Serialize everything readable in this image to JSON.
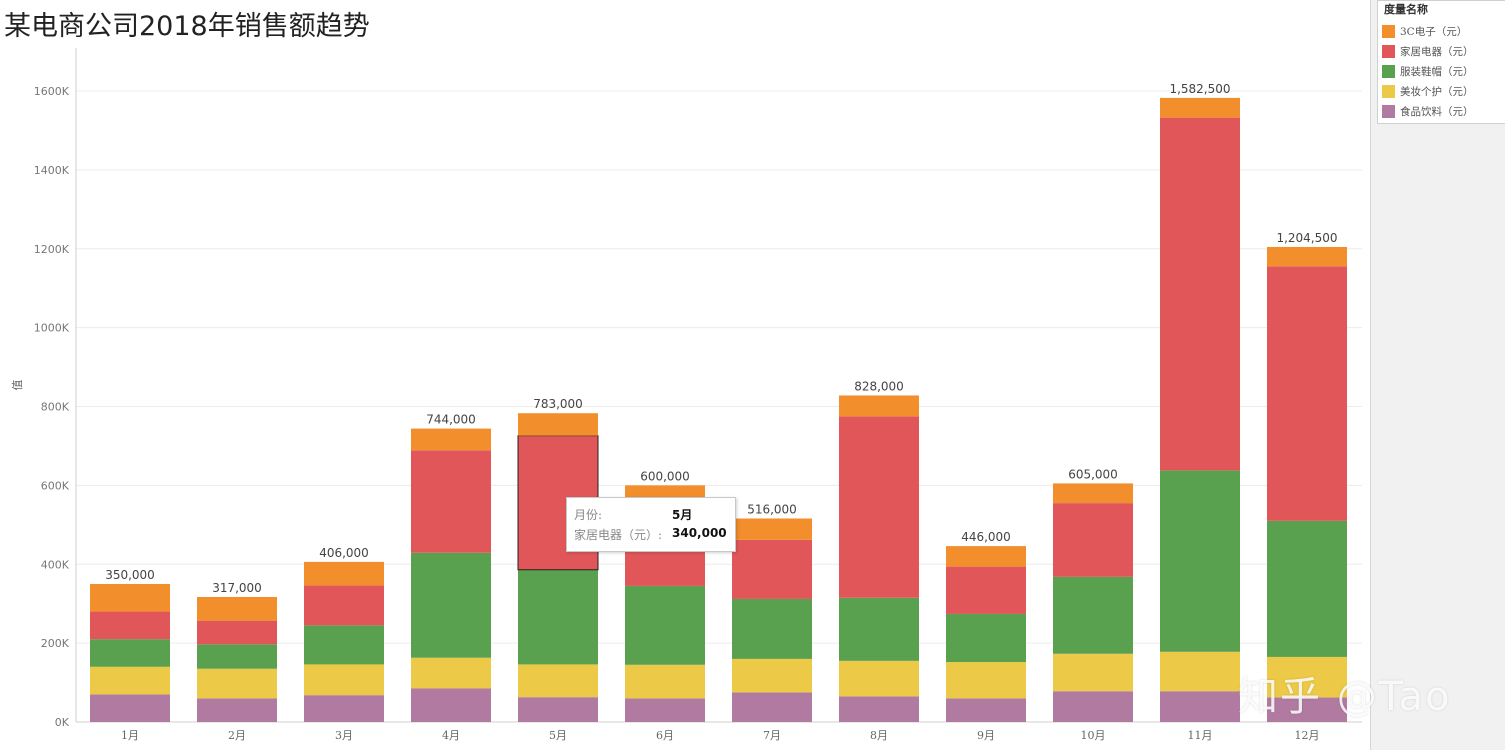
{
  "chart_data": {
    "type": "bar",
    "stacked": true,
    "title": "某电商公司2018年销售额趋势",
    "ylabel": "值",
    "xlabel": "",
    "ylim": [
      0,
      1700000
    ],
    "y_ticks": [
      0,
      200000,
      400000,
      600000,
      800000,
      1000000,
      1200000,
      1400000,
      1600000
    ],
    "y_tick_labels": [
      "0K",
      "200K",
      "400K",
      "600K",
      "800K",
      "1000K",
      "1200K",
      "1400K",
      "1600K"
    ],
    "grid": true,
    "legend_position": "top-right",
    "categories": [
      "1月",
      "2月",
      "3月",
      "4月",
      "5月",
      "6月",
      "7月",
      "8月",
      "9月",
      "10月",
      "11月",
      "12月"
    ],
    "series": [
      {
        "name": "食品饮料（元）",
        "color": "#b07aa1",
        "values": [
          70000,
          60000,
          68000,
          85000,
          63000,
          60000,
          75000,
          65000,
          60000,
          78000,
          78000,
          62000
        ]
      },
      {
        "name": "美妆个护（元）",
        "color": "#edc948",
        "values": [
          70000,
          75000,
          78000,
          78000,
          83000,
          85000,
          85000,
          90000,
          92000,
          95000,
          100000,
          103000
        ]
      },
      {
        "name": "服装鞋帽（元）",
        "color": "#59a14f",
        "values": [
          70000,
          62000,
          99000,
          266000,
          240000,
          200000,
          152000,
          160000,
          122000,
          195000,
          460000,
          345000
        ]
      },
      {
        "name": "家居电器（元）",
        "color": "#e15759",
        "values": [
          70000,
          60000,
          101000,
          260000,
          340000,
          190000,
          150000,
          460000,
          120000,
          187000,
          894500,
          645500
        ]
      },
      {
        "name": "3C电子（元）",
        "color": "#f28e2b",
        "values": [
          70000,
          60000,
          60000,
          55000,
          57000,
          65000,
          54000,
          53000,
          52000,
          50000,
          50000,
          49000
        ]
      }
    ],
    "totals": [
      350000,
      317000,
      406000,
      744000,
      783000,
      600000,
      516000,
      828000,
      446000,
      605000,
      1582500,
      1204500
    ],
    "total_labels": [
      "350,000",
      "317,000",
      "406,000",
      "744,000",
      "783,000",
      "600,000",
      "516,000",
      "828,000",
      "446,000",
      "605,000",
      "1,582,500",
      "1,204,500"
    ],
    "highlight": {
      "category_index": 4,
      "series_index": 3
    }
  },
  "legend": {
    "title": "度量名称",
    "items": [
      {
        "label": "3C电子（元）",
        "color": "#f28e2b"
      },
      {
        "label": "家居电器（元）",
        "color": "#e15759"
      },
      {
        "label": "服装鞋帽（元）",
        "color": "#59a14f"
      },
      {
        "label": "美妆个护（元）",
        "color": "#edc948"
      },
      {
        "label": "食品饮料（元）",
        "color": "#b07aa1"
      }
    ]
  },
  "tooltip": {
    "key1": "月份:",
    "val1": "5月",
    "key2": "家居电器（元）:",
    "val2": "340,000"
  },
  "watermark": "知乎 @Tao"
}
